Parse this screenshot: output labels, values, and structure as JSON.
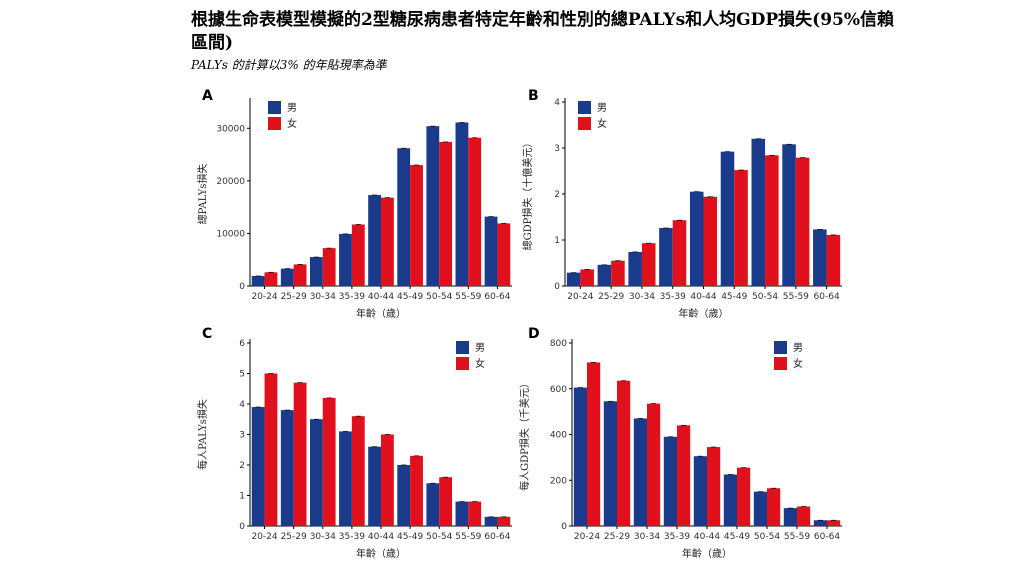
{
  "title": "根據生命表模型模擬的2型糖尿病患者特定年齡和性別的總PALYs和人均GDP損失(95%信賴區間)",
  "subtitle": "PALYs 的計算以3% 的年貼現率為準",
  "colors": {
    "male": "#1a3a8c",
    "female": "#e0101c"
  },
  "chart_data": [
    {
      "panel": "A",
      "type": "bar",
      "categories": [
        "20-24",
        "25-29",
        "30-34",
        "35-39",
        "40-44",
        "45-49",
        "50-54",
        "55-59",
        "60-64"
      ],
      "series": [
        {
          "name": "男",
          "values": [
            1900,
            3300,
            5500,
            9900,
            17300,
            26200,
            30400,
            31100,
            13200
          ]
        },
        {
          "name": "女",
          "values": [
            2600,
            4100,
            7200,
            11700,
            16800,
            23000,
            27400,
            28200,
            11900
          ]
        }
      ],
      "xlabel": "年齡（歲）",
      "ylabel": "總PALYs損失",
      "ylim": [
        0,
        35000
      ],
      "yticks": [
        0,
        10000,
        20000,
        30000
      ],
      "legend_position": "top-left",
      "grid": false
    },
    {
      "panel": "B",
      "type": "bar",
      "categories": [
        "20-24",
        "25-29",
        "30-34",
        "35-39",
        "40-44",
        "45-49",
        "50-54",
        "55-59",
        "60-64"
      ],
      "series": [
        {
          "name": "男",
          "values": [
            0.29,
            0.46,
            0.74,
            1.26,
            2.05,
            2.92,
            3.2,
            3.08,
            1.23
          ]
        },
        {
          "name": "女",
          "values": [
            0.36,
            0.55,
            0.93,
            1.43,
            1.94,
            2.52,
            2.84,
            2.79,
            1.11
          ]
        }
      ],
      "xlabel": "年齡（歲）",
      "ylabel": "總GDP損失（十億美元）",
      "ylim": [
        0,
        4
      ],
      "yticks": [
        0,
        1,
        2,
        3,
        4
      ],
      "legend_position": "top-left",
      "grid": false
    },
    {
      "panel": "C",
      "type": "bar",
      "categories": [
        "20-24",
        "25-29",
        "30-34",
        "35-39",
        "40-44",
        "45-49",
        "50-54",
        "55-59",
        "60-64"
      ],
      "series": [
        {
          "name": "男",
          "values": [
            3.9,
            3.8,
            3.5,
            3.1,
            2.6,
            2.0,
            1.4,
            0.8,
            0.3
          ]
        },
        {
          "name": "女",
          "values": [
            5.0,
            4.7,
            4.2,
            3.6,
            3.0,
            2.3,
            1.6,
            0.8,
            0.3
          ]
        }
      ],
      "xlabel": "年齡（歲）",
      "ylabel": "每人PALYs損失",
      "ylim": [
        0,
        6
      ],
      "yticks": [
        0,
        1,
        2,
        3,
        4,
        5,
        6
      ],
      "legend_position": "top-right",
      "grid": false
    },
    {
      "panel": "D",
      "type": "bar",
      "categories": [
        "20-24",
        "25-29",
        "30-34",
        "35-39",
        "40-44",
        "45-49",
        "50-54",
        "55-59",
        "60-64"
      ],
      "series": [
        {
          "name": "男",
          "values": [
            605,
            545,
            470,
            390,
            305,
            225,
            150,
            78,
            25
          ]
        },
        {
          "name": "女",
          "values": [
            715,
            635,
            535,
            440,
            345,
            255,
            165,
            85,
            25
          ]
        }
      ],
      "xlabel": "年齡（歲）",
      "ylabel": "每人GDP損失（千美元）",
      "ylim": [
        0,
        800
      ],
      "yticks": [
        0,
        200,
        400,
        600,
        800
      ],
      "legend_position": "top-right",
      "grid": false
    }
  ]
}
